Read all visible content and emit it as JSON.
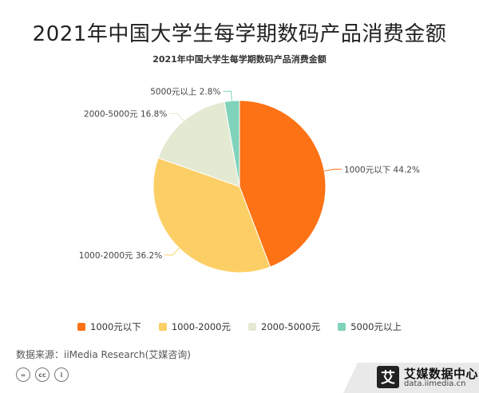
{
  "header": {
    "title": "2021年中国大学生每学期数码产品消费金额",
    "subtitle": "2021年中国大学生每学期数码产品消费金额"
  },
  "chart_data": {
    "type": "pie",
    "title": "2021年中国大学生每学期数码产品消费金额",
    "categories": [
      "1000元以下",
      "1000-2000元",
      "2000-5000元",
      "5000元以上"
    ],
    "values": [
      44.2,
      36.2,
      16.8,
      2.8
    ],
    "unit": "%",
    "colors": [
      "#fc7215",
      "#fccf66",
      "#e4ead2",
      "#7fd3bb"
    ],
    "slice_labels": [
      "1000元以下 44.2%",
      "1000-2000元 36.2%",
      "2000-5000元 16.8%",
      "5000元以上 2.8%"
    ],
    "legend_position": "bottom",
    "start": "12 o'clock",
    "direction": "clockwise"
  },
  "legend": {
    "items": [
      "1000元以下",
      "1000-2000元",
      "2000-5000元",
      "5000元以上"
    ]
  },
  "footer": {
    "source": "数据来源：iiMedia Research(艾媒咨询)",
    "cc_icons": [
      "=",
      "cc",
      "i"
    ],
    "brand_logo": "艾",
    "brand_name": "艾媒数据中心",
    "brand_url": "data.iimedia.cn"
  }
}
